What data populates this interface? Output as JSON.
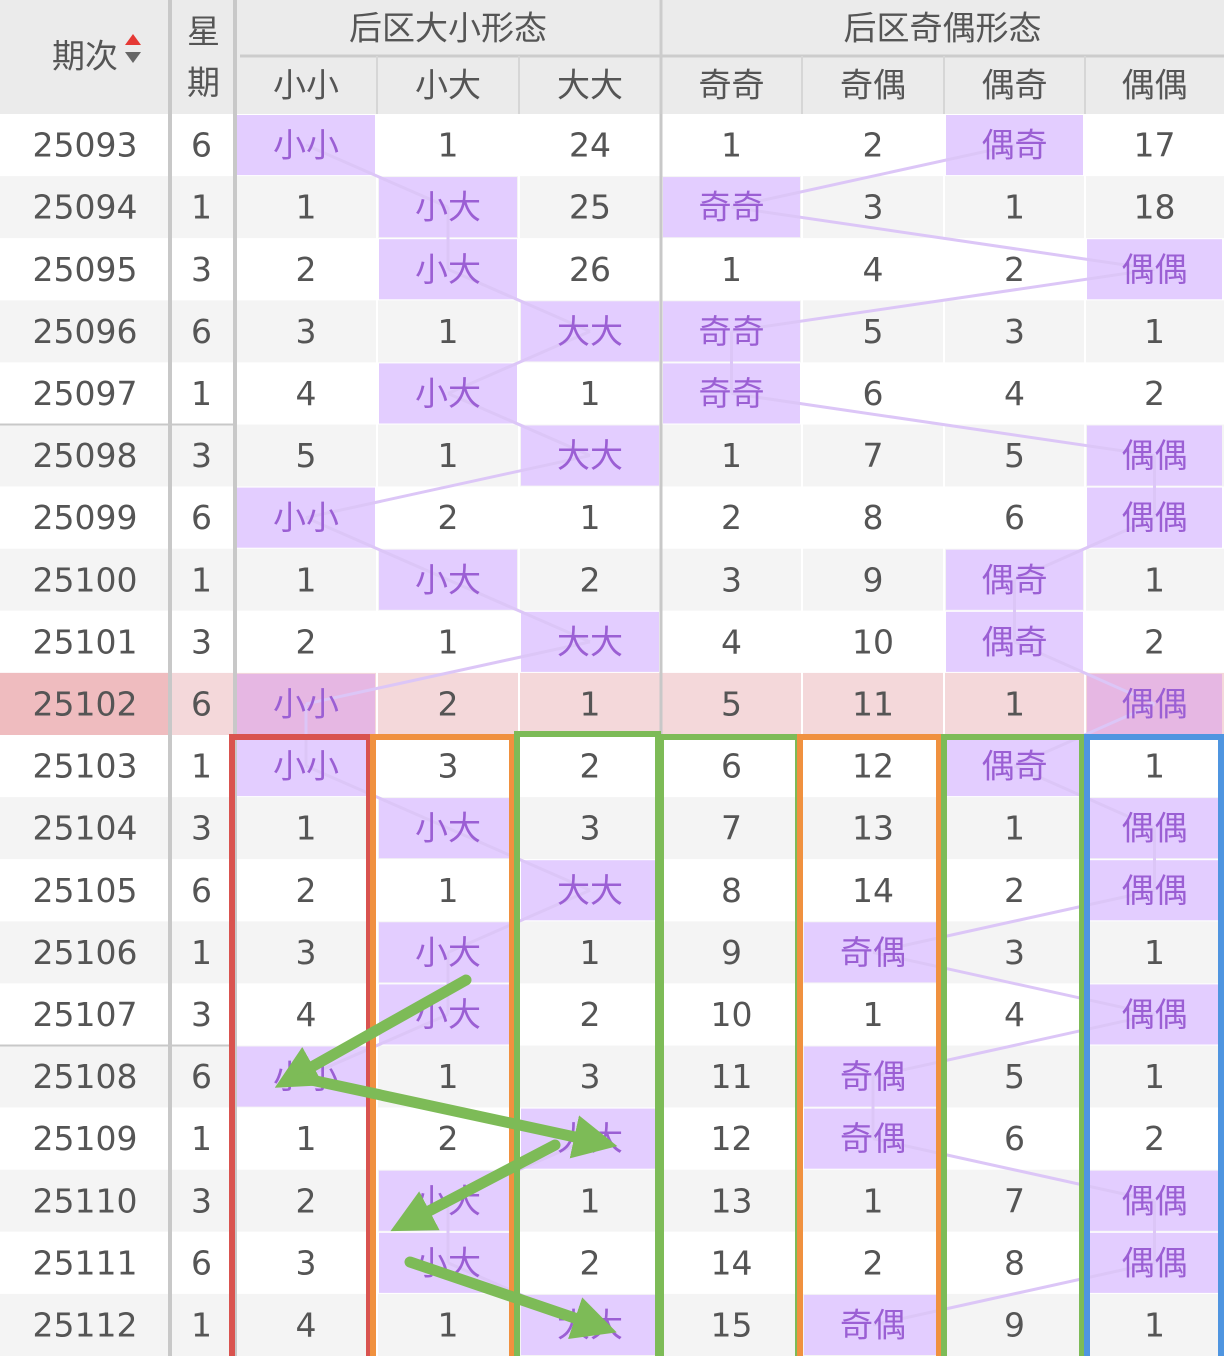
{
  "header": {
    "period": "期次",
    "weekday": "星期",
    "groups": [
      "后区大小形态",
      "后区奇偶形态"
    ],
    "subcolumns": [
      "小小",
      "小大",
      "大大",
      "奇奇",
      "奇偶",
      "偶奇",
      "偶偶"
    ]
  },
  "rows": [
    [
      25093,
      6,
      "小小",
      1,
      24,
      1,
      2,
      "偶奇",
      17
    ],
    [
      25094,
      1,
      1,
      "小大",
      25,
      "奇奇",
      3,
      1,
      18
    ],
    [
      25095,
      3,
      2,
      "小大",
      26,
      1,
      4,
      2,
      "偶偶"
    ],
    [
      25096,
      6,
      3,
      1,
      "大大",
      "奇奇",
      5,
      3,
      1
    ],
    [
      25097,
      1,
      4,
      "小大",
      1,
      "奇奇",
      6,
      4,
      2
    ],
    [
      25098,
      3,
      5,
      1,
      "大大",
      1,
      7,
      5,
      "偶偶"
    ],
    [
      25099,
      6,
      "小小",
      2,
      1,
      2,
      8,
      6,
      "偶偶"
    ],
    [
      25100,
      1,
      1,
      "小大",
      2,
      3,
      9,
      "偶奇",
      1
    ],
    [
      25101,
      3,
      2,
      1,
      "大大",
      4,
      10,
      "偶奇",
      2
    ],
    [
      25102,
      6,
      "小小",
      2,
      1,
      5,
      11,
      1,
      "偶偶"
    ],
    [
      25103,
      1,
      "小小",
      3,
      2,
      6,
      12,
      "偶奇",
      1
    ],
    [
      25104,
      3,
      1,
      "小大",
      3,
      7,
      13,
      1,
      "偶偶"
    ],
    [
      25105,
      6,
      2,
      1,
      "大大",
      8,
      14,
      2,
      "偶偶"
    ],
    [
      25106,
      1,
      3,
      "小大",
      1,
      9,
      "奇偶",
      3,
      1
    ],
    [
      25107,
      3,
      4,
      "小大",
      2,
      10,
      1,
      4,
      "偶偶"
    ],
    [
      25108,
      6,
      "小小",
      1,
      3,
      11,
      "奇偶",
      5,
      1
    ],
    [
      25109,
      1,
      1,
      2,
      "大大",
      12,
      "奇偶",
      6,
      2
    ],
    [
      25110,
      3,
      2,
      "小大",
      1,
      13,
      1,
      7,
      "偶偶"
    ],
    [
      25111,
      6,
      3,
      "小大",
      2,
      14,
      2,
      8,
      "偶偶"
    ],
    [
      25112,
      1,
      4,
      1,
      "大大",
      15,
      "奇偶",
      9,
      1
    ]
  ]
}
